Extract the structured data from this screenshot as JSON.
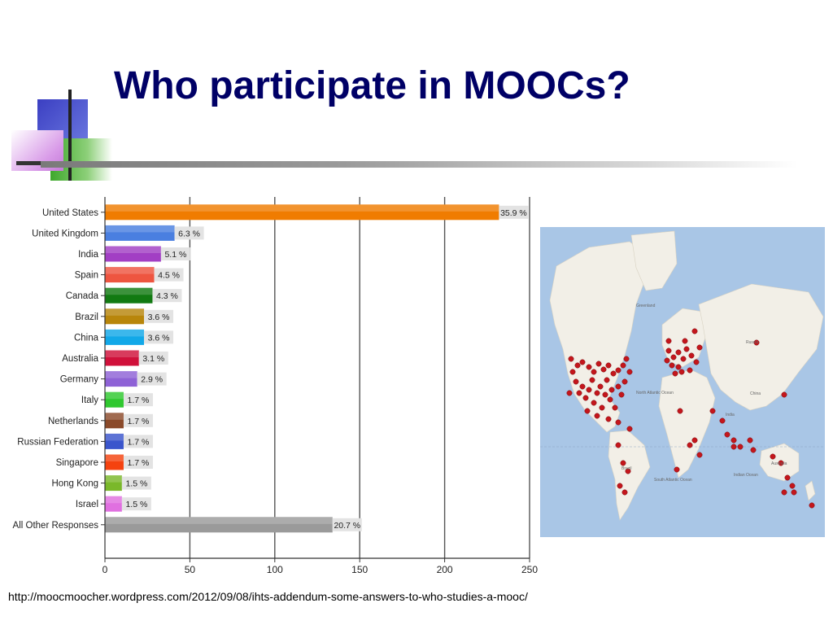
{
  "slide": {
    "title": "Who participate in MOOCs?",
    "source": "http://moocmoocher.wordpress.com/2012/09/08/ihts-addendum-some-answers-to-who-studies-a-mooc/"
  },
  "chart_data": {
    "type": "bar",
    "orientation": "horizontal",
    "categories": [
      "United States",
      "United Kingdom",
      "India",
      "Spain",
      "Canada",
      "Brazil",
      "China",
      "Australia",
      "Germany",
      "Italy",
      "Netherlands",
      "Russian Federation",
      "Singapore",
      "Hong Kong",
      "Israel",
      "All Other Responses"
    ],
    "values": [
      232,
      41,
      33,
      29,
      28,
      23,
      23,
      20,
      19,
      11,
      11,
      11,
      11,
      10,
      10,
      134
    ],
    "data_labels": [
      "35.9 %",
      "6.3 %",
      "5.1 %",
      "4.5 %",
      "4.3 %",
      "3.6 %",
      "3.6 %",
      "3.1 %",
      "2.9 %",
      "1.7 %",
      "1.7 %",
      "1.7 %",
      "1.7 %",
      "1.5 %",
      "1.5 %",
      "20.7 %"
    ],
    "colors": [
      "#f07c00",
      "#4a7fe0",
      "#a23fc4",
      "#ee5540",
      "#127a12",
      "#b8860b",
      "#12a8e8",
      "#d0103a",
      "#8e62d6",
      "#2fc82f",
      "#8b4a2a",
      "#3a55cc",
      "#f5420f",
      "#7ab82a",
      "#e070e0",
      "#9a9a9a"
    ],
    "xticks": [
      "0",
      "50",
      "100",
      "150",
      "200",
      "250"
    ],
    "xlim": [
      0,
      250
    ],
    "grid": true,
    "legend": "none"
  },
  "map": {
    "labels": {
      "greenland": "Greenland",
      "russia": "Russia",
      "north_atlantic": "North Atlantic Ocean",
      "south_atlantic": "South Atlantic Ocean",
      "china": "China",
      "india": "India",
      "brazil": "Brazil",
      "australia": "Australia",
      "indian_ocean": "Indian Ocean"
    },
    "colors": {
      "ocean": "#a9c6e6",
      "land": "#f2efe7",
      "marker": "#c4161c"
    }
  }
}
